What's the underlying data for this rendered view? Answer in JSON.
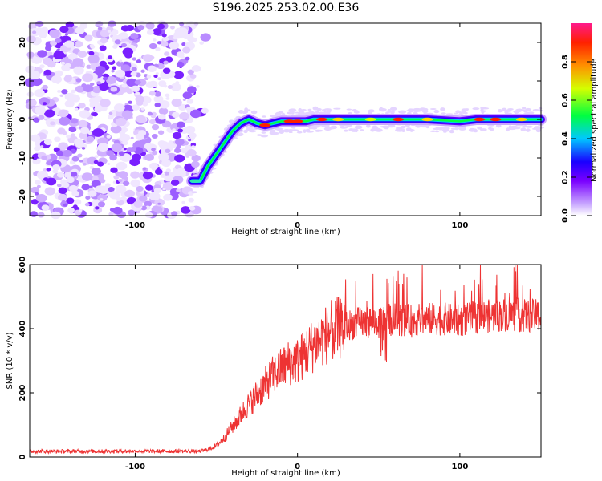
{
  "title": "S196.2025.253.02.00.E36",
  "chart_data": [
    {
      "type": "heatmap",
      "name": "spectrogram",
      "xlabel": "Height of straight line (km)",
      "ylabel": "Frequency (Hz)",
      "xlim": [
        -165,
        150
      ],
      "ylim": [
        -25,
        25
      ],
      "xticks": [
        -100,
        0,
        100
      ],
      "yticks": [
        -20,
        -10,
        0,
        10,
        20
      ],
      "colorbar": {
        "label": "Normalized spectral amplitude",
        "range": [
          0,
          1
        ],
        "ticks": [
          0.0,
          0.2,
          0.4,
          0.6,
          0.8
        ]
      },
      "signal_track": {
        "x": [
          -65,
          -60,
          -55,
          -50,
          -45,
          -40,
          -35,
          -30,
          -25,
          -20,
          -15,
          -10,
          -5,
          0,
          5,
          10,
          15,
          20,
          40,
          60,
          80,
          100,
          110,
          120,
          140,
          150
        ],
        "frequency": [
          -16,
          -16,
          -12,
          -9,
          -6,
          -3,
          -1,
          0,
          -1,
          -1.5,
          -1,
          -0.5,
          -0.5,
          -0.5,
          -0.5,
          0,
          0,
          0,
          0,
          0,
          0,
          -0.5,
          0,
          0,
          0,
          0
        ]
      },
      "noise_region": {
        "x_from": -165,
        "x_to": -62
      }
    },
    {
      "type": "line",
      "name": "snr",
      "xlabel": "Height of straight line (km)",
      "ylabel": "SNR (10 * v/v)",
      "xlim": [
        -165,
        150
      ],
      "ylim": [
        0,
        600
      ],
      "xticks": [
        -100,
        0,
        100
      ],
      "yticks": [
        0,
        200,
        400,
        600
      ],
      "series": [
        {
          "name": "SNR",
          "color": "#ee3333",
          "x": [
            -165,
            -140,
            -120,
            -100,
            -80,
            -60,
            -55,
            -50,
            -45,
            -40,
            -35,
            -30,
            -25,
            -20,
            -15,
            -10,
            -5,
            0,
            5,
            10,
            15,
            20,
            25,
            30,
            40,
            50,
            60,
            70,
            80,
            90,
            100,
            110,
            120,
            130,
            140,
            150
          ],
          "values": [
            18,
            18,
            18,
            18,
            18,
            18,
            24,
            35,
            60,
            95,
            130,
            165,
            195,
            225,
            255,
            275,
            295,
            300,
            325,
            350,
            370,
            390,
            400,
            410,
            420,
            425,
            430,
            425,
            430,
            430,
            425,
            435,
            440,
            445,
            440,
            440
          ]
        }
      ]
    }
  ]
}
